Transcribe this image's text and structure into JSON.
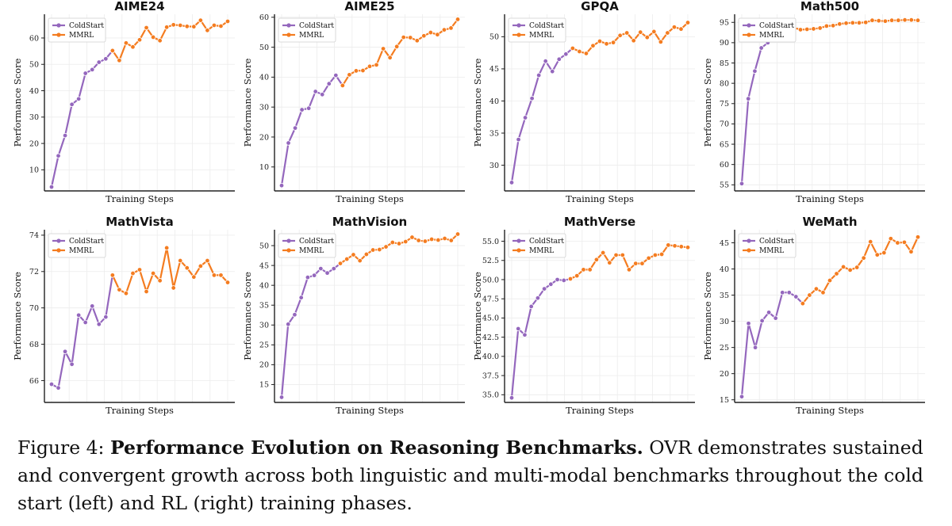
{
  "caption": {
    "prefix": "Figure 4: ",
    "bold": "Performance Evolution on Reasoning Benchmarks.",
    "rest": " OVR demonstrates sustained and convergent growth across both linguistic and multi-modal benchmarks throughout the cold start (left) and RL (right) training phases."
  },
  "colors": {
    "coldstart": "#9467bd",
    "mmrl": "#f47c20",
    "grid": "#ececec",
    "axis": "#222222"
  },
  "chart_data": [
    {
      "type": "line",
      "title": "AIME24",
      "xlabel": "Training Steps",
      "ylabel": "Performance Score",
      "ylim": [
        2,
        69
      ],
      "yticks": [
        10,
        20,
        30,
        40,
        50,
        60
      ],
      "grid": true,
      "legend": "top-left",
      "series": [
        {
          "name": "ColdStart",
          "values": [
            3.5,
            15.3,
            23.0,
            34.8,
            36.9,
            46.6,
            48.0,
            50.8,
            52.1,
            55.2
          ]
        },
        {
          "name": "MMRL",
          "values": [
            55.2,
            51.5,
            58.1,
            56.6,
            59.3,
            63.9,
            60.3,
            59.0,
            64.1,
            65.0,
            64.8,
            64.4,
            64.3,
            66.7,
            62.9,
            64.8,
            64.5,
            66.3
          ]
        }
      ]
    },
    {
      "type": "line",
      "title": "AIME25",
      "xlabel": "Training Steps",
      "ylabel": "Performance Score",
      "ylim": [
        2,
        61
      ],
      "yticks": [
        10,
        20,
        30,
        40,
        50,
        60
      ],
      "grid": true,
      "legend": "top-left",
      "series": [
        {
          "name": "ColdStart",
          "values": [
            3.8,
            18.0,
            23.0,
            29.1,
            29.6,
            35.2,
            34.2,
            37.8,
            40.6,
            37.2
          ]
        },
        {
          "name": "MMRL",
          "values": [
            37.2,
            40.8,
            42.1,
            42.2,
            43.6,
            44.1,
            49.5,
            46.5,
            50.2,
            53.3,
            53.2,
            52.2,
            53.8,
            54.9,
            54.2,
            55.8,
            56.4,
            59.3
          ]
        }
      ]
    },
    {
      "type": "line",
      "title": "GPQA",
      "xlabel": "Training Steps",
      "ylabel": "Performance Score",
      "ylim": [
        26,
        53.5
      ],
      "yticks": [
        30,
        35,
        40,
        45,
        50
      ],
      "grid": true,
      "legend": "top-left",
      "series": [
        {
          "name": "ColdStart",
          "values": [
            27.3,
            34.0,
            37.4,
            40.4,
            44.0,
            46.2,
            44.6,
            46.5,
            47.3,
            48.2
          ]
        },
        {
          "name": "MMRL",
          "values": [
            48.2,
            47.7,
            47.4,
            48.6,
            49.3,
            48.9,
            49.1,
            50.2,
            50.6,
            49.4,
            50.7,
            49.9,
            50.8,
            49.2,
            50.6,
            51.5,
            51.2,
            52.2
          ]
        }
      ]
    },
    {
      "type": "line",
      "title": "Math500",
      "xlabel": "Training Steps",
      "ylabel": "Performance Score",
      "ylim": [
        53.5,
        97
      ],
      "yticks": [
        55,
        60,
        65,
        70,
        75,
        80,
        85,
        90,
        95
      ],
      "grid": true,
      "legend": "top-left",
      "series": [
        {
          "name": "ColdStart",
          "values": [
            55.3,
            76.2,
            83.0,
            88.7,
            90.0,
            91.8,
            92.0,
            92.4,
            93.7
          ]
        },
        {
          "name": "MMRL",
          "values": [
            93.7,
            93.2,
            93.3,
            93.4,
            93.6,
            94.1,
            94.2,
            94.6,
            94.8,
            94.9,
            94.9,
            95.0,
            95.5,
            95.4,
            95.3,
            95.5,
            95.5,
            95.6,
            95.6,
            95.5
          ]
        }
      ]
    },
    {
      "type": "line",
      "title": "MathVista",
      "xlabel": "Training Steps",
      "ylabel": "Performance Score",
      "ylim": [
        64.8,
        74.3
      ],
      "yticks": [
        66,
        68,
        70,
        72,
        74
      ],
      "grid": true,
      "legend": "top-left",
      "series": [
        {
          "name": "ColdStart",
          "values": [
            65.8,
            65.6,
            67.6,
            66.9,
            69.6,
            69.2,
            70.1,
            69.1,
            69.5,
            71.8
          ]
        },
        {
          "name": "MMRL",
          "values": [
            71.8,
            71.0,
            70.8,
            71.9,
            72.1,
            70.9,
            71.9,
            71.5,
            73.3,
            71.1,
            72.6,
            72.2,
            71.7,
            72.3,
            72.6,
            71.8,
            71.8,
            71.4
          ]
        }
      ]
    },
    {
      "type": "line",
      "title": "MathVision",
      "xlabel": "Training Steps",
      "ylabel": "Performance Score",
      "ylim": [
        10.5,
        54
      ],
      "yticks": [
        15,
        20,
        25,
        30,
        35,
        40,
        45,
        50
      ],
      "grid": true,
      "legend": "top-left",
      "series": [
        {
          "name": "ColdStart",
          "values": [
            11.8,
            30.2,
            32.6,
            36.9,
            42.0,
            42.5,
            44.2,
            43.1,
            44.2,
            45.5
          ]
        },
        {
          "name": "MMRL",
          "values": [
            45.5,
            46.6,
            47.7,
            46.2,
            47.8,
            48.9,
            49.0,
            49.7,
            50.8,
            50.5,
            51.0,
            52.1,
            51.3,
            51.1,
            51.6,
            51.4,
            51.8,
            51.3,
            52.9
          ]
        }
      ]
    },
    {
      "type": "line",
      "title": "MathVerse",
      "xlabel": "Training Steps",
      "ylabel": "Performance Score",
      "ylim": [
        34,
        56.5
      ],
      "yticks": [
        35.0,
        37.5,
        40.0,
        42.5,
        45.0,
        47.5,
        50.0,
        52.5,
        55.0
      ],
      "tick_format": "1dp",
      "grid": true,
      "legend": "top-left",
      "series": [
        {
          "name": "ColdStart",
          "values": [
            34.6,
            43.6,
            42.8,
            46.5,
            47.6,
            48.8,
            49.4,
            50.0,
            49.9,
            50.1
          ]
        },
        {
          "name": "MMRL",
          "values": [
            50.1,
            50.5,
            51.3,
            51.3,
            52.6,
            53.5,
            52.2,
            53.2,
            53.2,
            51.3,
            52.1,
            52.1,
            52.8,
            53.2,
            53.3,
            54.5,
            54.4,
            54.3,
            54.2
          ]
        }
      ]
    },
    {
      "type": "line",
      "title": "WeMath",
      "xlabel": "Training Steps",
      "ylabel": "Performance Score",
      "ylim": [
        14.5,
        47.5
      ],
      "yticks": [
        15,
        20,
        25,
        30,
        35,
        40,
        45
      ],
      "grid": true,
      "legend": "top-left",
      "series": [
        {
          "name": "ColdStart",
          "values": [
            15.6,
            29.6,
            25.0,
            30.1,
            31.7,
            30.6,
            35.5,
            35.5,
            34.7,
            33.4
          ]
        },
        {
          "name": "MMRL",
          "values": [
            33.4,
            35.0,
            36.2,
            35.5,
            37.8,
            39.1,
            40.4,
            39.8,
            40.3,
            42.1,
            45.2,
            42.7,
            43.1,
            45.8,
            45.0,
            45.1,
            43.3,
            46.1
          ]
        }
      ]
    }
  ]
}
